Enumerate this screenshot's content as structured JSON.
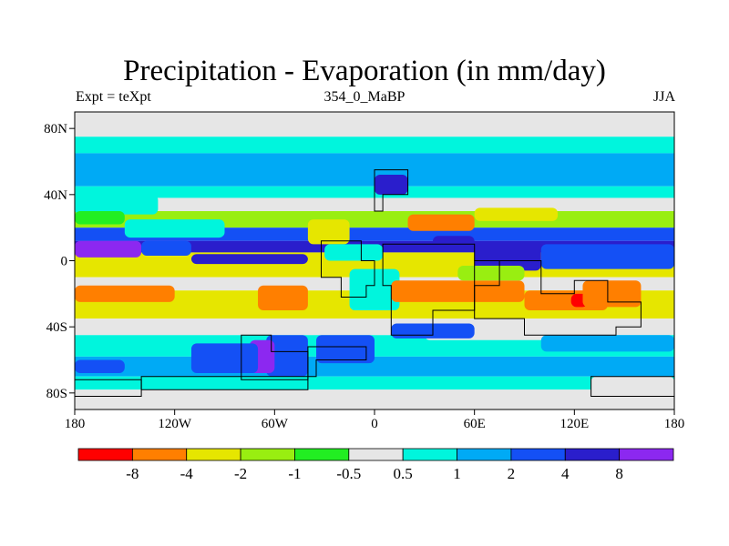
{
  "header": {
    "title": "Precipitation - Evaporation (in mm/day)",
    "left_label": "Expt = teXpt",
    "center_label": "354_0_MaBP",
    "right_label": "JJA"
  },
  "chart_data": {
    "type": "heatmap",
    "title": "Precipitation - Evaporation (in mm/day)",
    "x_ticks": [
      {
        "value": -180,
        "label": "180"
      },
      {
        "value": -120,
        "label": "120W"
      },
      {
        "value": -60,
        "label": "60W"
      },
      {
        "value": 0,
        "label": "0"
      },
      {
        "value": 60,
        "label": "60E"
      },
      {
        "value": 120,
        "label": "120E"
      },
      {
        "value": 180,
        "label": "180"
      }
    ],
    "y_ticks": [
      {
        "value": 80,
        "label": "80N"
      },
      {
        "value": 40,
        "label": "40N"
      },
      {
        "value": 0,
        "label": "0"
      },
      {
        "value": -40,
        "label": "40S"
      },
      {
        "value": -80,
        "label": "80S"
      }
    ],
    "xlim": [
      -180,
      180
    ],
    "ylim": [
      -90,
      90
    ],
    "colorbar": {
      "colors": [
        "#ff0000",
        "#ff7f00",
        "#e6e600",
        "#99ee11",
        "#22ee22",
        "#e6e6e6",
        "#00f5dd",
        "#00aaf5",
        "#1450f5",
        "#2a1ecc",
        "#8c28f0"
      ],
      "labels": [
        "-8",
        "-4",
        "-2",
        "-1",
        "-0.5",
        "0.5",
        "1",
        "2",
        "4",
        "8"
      ]
    },
    "field_bands": [
      {
        "lat": [
          90,
          75
        ],
        "color": "#e6e6e6"
      },
      {
        "lat": [
          75,
          65
        ],
        "color": "#00f5dd"
      },
      {
        "lat": [
          65,
          45
        ],
        "color": "#00aaf5"
      },
      {
        "lat": [
          45,
          38
        ],
        "color": "#00f5dd"
      },
      {
        "lat": [
          38,
          30
        ],
        "color": "#e6e6e6"
      },
      {
        "lat": [
          30,
          20
        ],
        "color": "#99ee11"
      },
      {
        "lat": [
          20,
          12
        ],
        "color": "#1450f5"
      },
      {
        "lat": [
          12,
          5
        ],
        "color": "#2a1ecc"
      },
      {
        "lat": [
          5,
          -10
        ],
        "color": "#e6e600"
      },
      {
        "lat": [
          -10,
          -18
        ],
        "color": "#e6e6e6"
      },
      {
        "lat": [
          -18,
          -35
        ],
        "color": "#e6e600"
      },
      {
        "lat": [
          -35,
          -45
        ],
        "color": "#e6e6e6"
      },
      {
        "lat": [
          -45,
          -58
        ],
        "color": "#00f5dd"
      },
      {
        "lat": [
          -58,
          -70
        ],
        "color": "#00aaf5"
      },
      {
        "lat": [
          -70,
          -78
        ],
        "color": "#00f5dd"
      },
      {
        "lat": [
          -78,
          -90
        ],
        "color": "#e6e6e6"
      }
    ],
    "field_patches": [
      {
        "lon": [
          -180,
          -130
        ],
        "lat": [
          40,
          28
        ],
        "color": "#00f5dd"
      },
      {
        "lon": [
          -180,
          -150
        ],
        "lat": [
          30,
          22
        ],
        "color": "#22ee22"
      },
      {
        "lon": [
          -150,
          -90
        ],
        "lat": [
          25,
          14
        ],
        "color": "#00f5dd"
      },
      {
        "lon": [
          -180,
          -140
        ],
        "lat": [
          12,
          2
        ],
        "color": "#8c28f0"
      },
      {
        "lon": [
          -140,
          -110
        ],
        "lat": [
          12,
          3
        ],
        "color": "#1450f5"
      },
      {
        "lon": [
          -110,
          -40
        ],
        "lat": [
          4,
          -2
        ],
        "color": "#2a1ecc"
      },
      {
        "lon": [
          -180,
          -120
        ],
        "lat": [
          -15,
          -25
        ],
        "color": "#ff7f00"
      },
      {
        "lon": [
          -120,
          -70
        ],
        "lat": [
          -20,
          -32
        ],
        "color": "#e6e600"
      },
      {
        "lon": [
          -70,
          -40
        ],
        "lat": [
          -15,
          -30
        ],
        "color": "#ff7f00"
      },
      {
        "lon": [
          -65,
          -40
        ],
        "lat": [
          -45,
          -70
        ],
        "color": "#1450f5"
      },
      {
        "lon": [
          -75,
          -60
        ],
        "lat": [
          -48,
          -68
        ],
        "color": "#8c28f0"
      },
      {
        "lon": [
          -110,
          -70
        ],
        "lat": [
          -50,
          -68
        ],
        "color": "#1450f5"
      },
      {
        "lon": [
          -35,
          0
        ],
        "lat": [
          -45,
          -62
        ],
        "color": "#1450f5"
      },
      {
        "lon": [
          -40,
          -15
        ],
        "lat": [
          25,
          10
        ],
        "color": "#e6e600"
      },
      {
        "lon": [
          -30,
          5
        ],
        "lat": [
          10,
          0
        ],
        "color": "#00f5dd"
      },
      {
        "lon": [
          -15,
          15
        ],
        "lat": [
          -5,
          -30
        ],
        "color": "#00f5dd"
      },
      {
        "lon": [
          0,
          20
        ],
        "lat": [
          52,
          40
        ],
        "color": "#2a1ecc"
      },
      {
        "lon": [
          20,
          60
        ],
        "lat": [
          28,
          18
        ],
        "color": "#ff7f00"
      },
      {
        "lon": [
          60,
          110
        ],
        "lat": [
          32,
          24
        ],
        "color": "#e6e600"
      },
      {
        "lon": [
          35,
          60
        ],
        "lat": [
          15,
          6
        ],
        "color": "#2a1ecc"
      },
      {
        "lon": [
          60,
          100
        ],
        "lat": [
          10,
          -6
        ],
        "color": "#2a1ecc"
      },
      {
        "lon": [
          100,
          180
        ],
        "lat": [
          10,
          -5
        ],
        "color": "#1450f5"
      },
      {
        "lon": [
          10,
          90
        ],
        "lat": [
          -12,
          -25
        ],
        "color": "#ff7f00"
      },
      {
        "lon": [
          90,
          140
        ],
        "lat": [
          -18,
          -30
        ],
        "color": "#ff7f00"
      },
      {
        "lon": [
          118,
          128
        ],
        "lat": [
          -20,
          -28
        ],
        "color": "#ff0000"
      },
      {
        "lon": [
          50,
          90
        ],
        "lat": [
          -3,
          -12
        ],
        "color": "#99ee11"
      },
      {
        "lon": [
          125,
          160
        ],
        "lat": [
          -12,
          -28
        ],
        "color": "#ff7f00"
      },
      {
        "lon": [
          30,
          120
        ],
        "lat": [
          -35,
          -48
        ],
        "color": "#e6e6e6"
      },
      {
        "lon": [
          10,
          60
        ],
        "lat": [
          -38,
          -47
        ],
        "color": "#1450f5"
      },
      {
        "lon": [
          100,
          180
        ],
        "lat": [
          -45,
          -55
        ],
        "color": "#00aaf5"
      },
      {
        "lon": [
          -180,
          -150
        ],
        "lat": [
          -60,
          -68
        ],
        "color": "#1450f5"
      },
      {
        "lon": [
          130,
          180
        ],
        "lat": [
          -70,
          -80
        ],
        "color": "#e6e6e6"
      }
    ],
    "land_outlines": [
      [
        [
          0,
          55
        ],
        [
          20,
          55
        ],
        [
          20,
          40
        ],
        [
          5,
          40
        ],
        [
          5,
          30
        ],
        [
          0,
          30
        ],
        [
          0,
          55
        ]
      ],
      [
        [
          -32,
          12
        ],
        [
          -8,
          12
        ],
        [
          -8,
          0
        ],
        [
          0,
          0
        ],
        [
          0,
          -15
        ],
        [
          -5,
          -15
        ],
        [
          -5,
          -22
        ],
        [
          -20,
          -22
        ],
        [
          -20,
          -10
        ],
        [
          -32,
          -10
        ],
        [
          -32,
          12
        ]
      ],
      [
        [
          5,
          10
        ],
        [
          60,
          10
        ],
        [
          60,
          0
        ],
        [
          75,
          0
        ],
        [
          75,
          -15
        ],
        [
          60,
          -15
        ],
        [
          60,
          -30
        ],
        [
          35,
          -30
        ],
        [
          35,
          -45
        ],
        [
          10,
          -45
        ],
        [
          10,
          -15
        ],
        [
          5,
          -15
        ],
        [
          5,
          10
        ]
      ],
      [
        [
          60,
          0
        ],
        [
          100,
          0
        ],
        [
          100,
          -20
        ],
        [
          120,
          -20
        ],
        [
          120,
          -12
        ],
        [
          140,
          -12
        ],
        [
          140,
          -25
        ],
        [
          160,
          -25
        ],
        [
          160,
          -40
        ],
        [
          145,
          -40
        ],
        [
          145,
          -45
        ],
        [
          90,
          -45
        ],
        [
          90,
          -35
        ],
        [
          60,
          -35
        ],
        [
          60,
          0
        ]
      ],
      [
        [
          -80,
          -45
        ],
        [
          -62,
          -45
        ],
        [
          -62,
          -55
        ],
        [
          -40,
          -55
        ],
        [
          -40,
          -72
        ],
        [
          -80,
          -72
        ],
        [
          -80,
          -45
        ]
      ],
      [
        [
          -40,
          -52
        ],
        [
          -5,
          -52
        ],
        [
          -5,
          -60
        ],
        [
          -35,
          -60
        ],
        [
          -35,
          -70
        ],
        [
          -40,
          -70
        ],
        [
          -40,
          -52
        ]
      ],
      [
        [
          -140,
          -70
        ],
        [
          -40,
          -70
        ],
        [
          -40,
          -78
        ],
        [
          -140,
          -78
        ],
        [
          -140,
          -70
        ]
      ],
      [
        [
          -180,
          -72
        ],
        [
          -140,
          -72
        ],
        [
          -140,
          -82
        ],
        [
          -180,
          -82
        ],
        [
          -180,
          -72
        ]
      ],
      [
        [
          130,
          -70
        ],
        [
          180,
          -70
        ],
        [
          180,
          -82
        ],
        [
          130,
          -82
        ],
        [
          130,
          -70
        ]
      ]
    ]
  }
}
